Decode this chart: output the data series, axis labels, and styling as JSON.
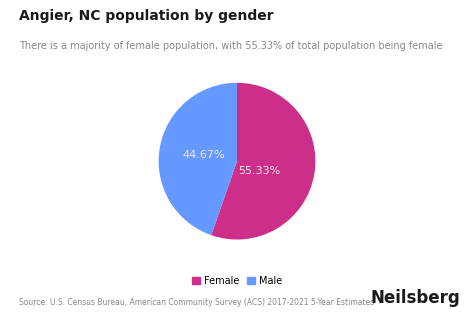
{
  "title": "Angier, NC population by gender",
  "subtitle": "There is a majority of female population, with 55.33% of total population being female",
  "slices": [
    55.33,
    44.67
  ],
  "labels": [
    "Female",
    "Male"
  ],
  "colors": [
    "#CC2E8A",
    "#6699FF"
  ],
  "autopct_values": [
    "55.33%",
    "44.67%"
  ],
  "legend_colors": [
    "#CC2E8A",
    "#6699FF"
  ],
  "source_text": "Source: U.S. Census Bureau, American Community Survey (ACS) 2017-2021 5-Year Estimates",
  "brand_text": "Neilsberg",
  "background_color": "#FFFFFF",
  "text_label_color": "#E8E8F0",
  "title_color": "#1a1a1a",
  "subtitle_color": "#888888",
  "source_color": "#888888",
  "brand_color": "#1a1a1a",
  "title_fontsize": 10,
  "subtitle_fontsize": 7,
  "source_fontsize": 5.5,
  "brand_fontsize": 12,
  "autopct_fontsize": 8,
  "legend_fontsize": 7
}
